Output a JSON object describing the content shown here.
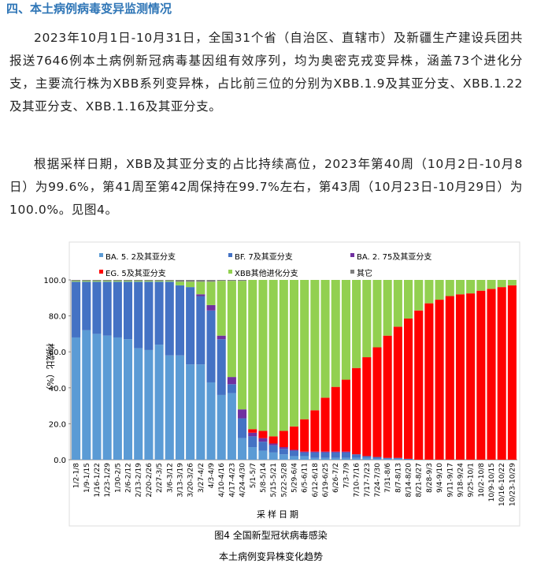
{
  "heading": "四、本土病例病毒变异监测情况",
  "paragraphs": [
    "2023年10月1日-10月31日，全国31个省（自治区、直辖市）及新疆生产建设兵团共报送7646例本土病例新冠病毒基因组有效序列，均为奥密克戎变异株，涵盖73个进化分支，主要流行株为XBB系列变异株，占比前三位的分别为XBB.1.9及其亚分支、XBB.1.22及其亚分支、XBB.1.16及其亚分支。",
    "根据采样日期，XBB及其亚分支的占比持续高位，2023年第40周（10月2日-10月8日）为99.6%，第41周至第42周保持在99.7%左右，第43周（10月23日-10月29日）为100.0%。见图4。"
  ],
  "chart_data": {
    "type": "stacked-bar",
    "x_label": "采样日期",
    "y_label": "构成比（%）",
    "categories": [
      "1/2-1/8",
      "1/9-1/15",
      "1/16-1/22",
      "1/23-1/29",
      "1/30-2/5",
      "2/6-2/12",
      "2/13-2/19",
      "2/20-2/26",
      "2/27-3/5",
      "3/6-3/12",
      "3/13-3/19",
      "3/20-3/26",
      "3/27-4/2",
      "4/3-4/9",
      "4/10-4/16",
      "4/17-4/23",
      "4/24-4/30",
      "5/1-5/7",
      "5/8-5/14",
      "5/15-5/21",
      "5/22-5/28",
      "5/29-6/4",
      "6/5-6/11",
      "6/12-6/18",
      "6/19-6/25",
      "6/26-7/2",
      "7/3-7/9",
      "7/10-7/16",
      "7/17-7/23",
      "7/24-7/30",
      "7/31-8/6",
      "8/7-8/13",
      "8/14-8/20",
      "8/21-8/27",
      "8/28-9/3",
      "9/4-9/10",
      "9/11-9/17",
      "9/18-9/24",
      "9/25-10/1",
      "10/2-10/8",
      "10/9-10/15",
      "10/16-10/22",
      "10/23-10/29"
    ],
    "series": [
      {
        "name": "BA. 5. 2及其亚分支",
        "color": "#5b9bd5",
        "values": [
          68,
          72,
          70,
          69,
          68,
          67,
          62,
          61,
          64,
          58,
          58,
          53,
          53,
          43,
          36,
          37,
          12,
          7,
          5,
          4,
          3,
          2,
          2,
          1,
          1,
          1,
          1,
          1,
          1,
          0.5,
          0.5,
          0.5,
          0,
          0,
          0,
          0,
          0,
          0,
          0,
          0,
          0,
          0,
          0
        ]
      },
      {
        "name": "BF. 7及其亚分支",
        "color": "#4472c4",
        "values": [
          31,
          27,
          29,
          30,
          31,
          32,
          37,
          38,
          35,
          41,
          39,
          43,
          38,
          40,
          31,
          5,
          11,
          6,
          5,
          4,
          3,
          3,
          2,
          3,
          3,
          3,
          3,
          2,
          1,
          1,
          0.5,
          0.5,
          0.5,
          0,
          0,
          0,
          0,
          0,
          0,
          0,
          0,
          0,
          0
        ]
      },
      {
        "name": "BA. 2. 75及其亚分支",
        "color": "#7030a0",
        "values": [
          0,
          0,
          0,
          0,
          0,
          0,
          0,
          0,
          0,
          0,
          0,
          0,
          1,
          3,
          2,
          4,
          5,
          2,
          2,
          1,
          1,
          0.5,
          0.5,
          0.5,
          0.5,
          0.5,
          0.5,
          0,
          0,
          0,
          0,
          0,
          0,
          0,
          0,
          0,
          0,
          0,
          0,
          0,
          0,
          0,
          0
        ]
      },
      {
        "name": "EG. 5及其亚分支",
        "color": "#ff0000",
        "values": [
          0,
          0,
          0,
          0,
          0,
          0,
          0,
          0,
          0,
          0,
          0,
          0,
          0,
          0,
          0,
          0,
          0,
          2,
          4,
          4,
          9,
          13,
          18,
          23,
          30,
          36,
          40,
          48,
          55,
          61,
          68,
          73,
          78,
          83,
          87,
          89,
          91,
          92,
          92.5,
          94,
          95,
          96,
          97
        ]
      },
      {
        "name": "XBB其他进化分支",
        "color": "#92d050",
        "values": [
          0.5,
          0.5,
          0.5,
          0.5,
          0.5,
          0.5,
          0.5,
          0.5,
          0.5,
          0.5,
          2,
          3,
          7,
          13,
          30.5,
          53.5,
          71.5,
          83,
          84,
          87,
          84,
          81.5,
          77.5,
          72.5,
          65.5,
          59.5,
          55.5,
          49,
          43,
          37.5,
          31,
          26,
          21.5,
          17,
          13,
          11,
          9,
          8,
          7.5,
          6,
          5,
          4,
          3
        ]
      },
      {
        "name": "其它",
        "color": "#7f7f7f",
        "values": [
          0.5,
          0.5,
          0.5,
          0.5,
          0.5,
          0.5,
          0.5,
          0.5,
          0.5,
          0.5,
          1,
          1,
          1,
          1,
          0.5,
          0.5,
          0.5,
          0,
          0,
          0,
          0,
          0,
          0,
          0,
          0,
          0,
          0,
          0,
          0,
          0,
          0,
          0,
          0,
          0,
          0,
          0,
          0,
          0,
          0,
          0,
          0,
          0,
          0
        ]
      }
    ],
    "ylim": [
      0,
      100
    ],
    "yticks": [
      {
        "value": 0,
        "label": "0.0"
      },
      {
        "value": 20,
        "label": "20.0"
      },
      {
        "value": 40,
        "label": "40.0"
      },
      {
        "value": 60,
        "label": "60.0"
      },
      {
        "value": 80,
        "label": "80.0"
      },
      {
        "value": 100,
        "label": "100.0"
      }
    ]
  },
  "caption": [
    "图4 全国新型冠状病毒感染",
    "本土病例变异株变化趋势"
  ]
}
